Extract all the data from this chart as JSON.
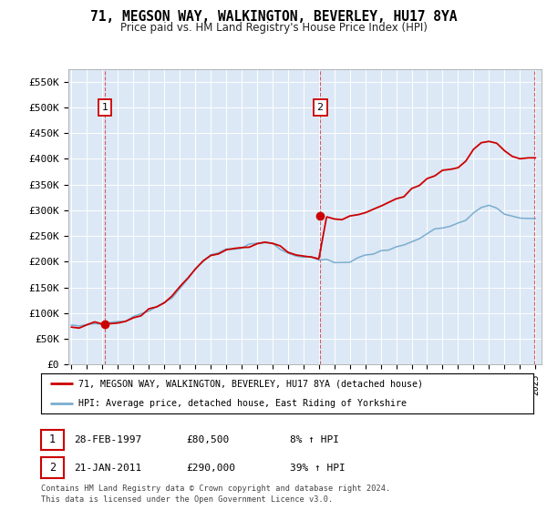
{
  "title1": "71, MEGSON WAY, WALKINGTON, BEVERLEY, HU17 8YA",
  "title2": "Price paid vs. HM Land Registry's House Price Index (HPI)",
  "legend_line1": "71, MEGSON WAY, WALKINGTON, BEVERLEY, HU17 8YA (detached house)",
  "legend_line2": "HPI: Average price, detached house, East Riding of Yorkshire",
  "sale1_date": "28-FEB-1997",
  "sale1_price": 80500,
  "sale1_label": "£80,500",
  "sale1_hpi": "8% ↑ HPI",
  "sale2_date": "21-JAN-2011",
  "sale2_price": 290000,
  "sale2_label": "£290,000",
  "sale2_hpi": "39% ↑ HPI",
  "footnote1": "Contains HM Land Registry data © Crown copyright and database right 2024.",
  "footnote2": "This data is licensed under the Open Government Licence v3.0.",
  "red_color": "#cc0000",
  "blue_color": "#7aadcf",
  "plot_bg": "#dce8f5",
  "ylim_min": 0,
  "ylim_max": 575000,
  "sale1_year": 1997.16,
  "sale2_year": 2011.08,
  "end_year": 2024.9,
  "hpi_years": [
    1995.0,
    1995.5,
    1996.0,
    1996.5,
    1997.0,
    1997.5,
    1998.0,
    1998.5,
    1999.0,
    1999.5,
    2000.0,
    2000.5,
    2001.0,
    2001.5,
    2002.0,
    2002.5,
    2003.0,
    2003.5,
    2004.0,
    2004.5,
    2005.0,
    2005.5,
    2006.0,
    2006.5,
    2007.0,
    2007.5,
    2008.0,
    2008.5,
    2009.0,
    2009.5,
    2010.0,
    2010.5,
    2011.0,
    2011.5,
    2012.0,
    2012.5,
    2013.0,
    2013.5,
    2014.0,
    2014.5,
    2015.0,
    2015.5,
    2016.0,
    2016.5,
    2017.0,
    2017.5,
    2018.0,
    2018.5,
    2019.0,
    2019.5,
    2020.0,
    2020.5,
    2021.0,
    2021.5,
    2022.0,
    2022.5,
    2023.0,
    2023.5,
    2024.0,
    2024.5
  ],
  "hpi_values": [
    74000,
    76000,
    78000,
    79000,
    80000,
    82000,
    84000,
    87000,
    92000,
    98000,
    105000,
    113000,
    120000,
    130000,
    148000,
    168000,
    185000,
    200000,
    213000,
    220000,
    222000,
    224000,
    227000,
    231000,
    236000,
    240000,
    237000,
    228000,
    215000,
    212000,
    210000,
    208000,
    206000,
    204000,
    202000,
    200000,
    201000,
    205000,
    210000,
    215000,
    220000,
    223000,
    228000,
    234000,
    242000,
    248000,
    254000,
    260000,
    265000,
    270000,
    272000,
    280000,
    295000,
    305000,
    310000,
    305000,
    295000,
    288000,
    285000,
    282000
  ]
}
